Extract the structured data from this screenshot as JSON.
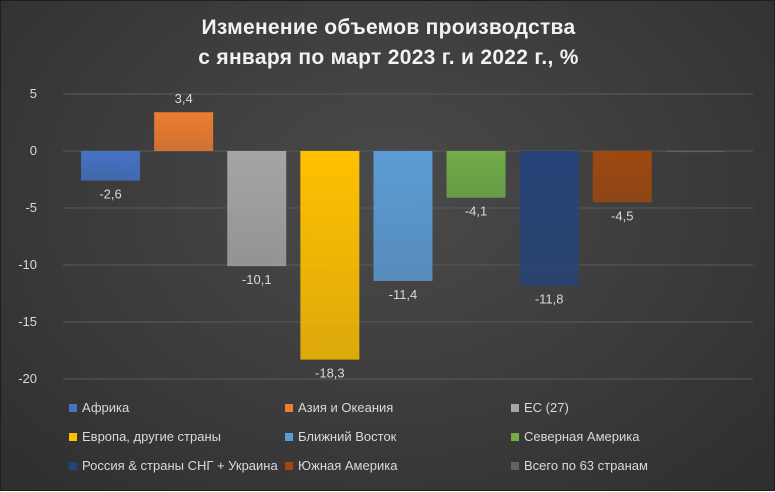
{
  "chart_data": {
    "type": "bar",
    "title_lines": [
      "Изменение объемов производства",
      "с января по март 2023 г. и 2022 г., %"
    ],
    "xlabel": "",
    "ylabel": "",
    "ylim": [
      -20,
      5
    ],
    "yticks": [
      "5",
      "0",
      "-5",
      "-10",
      "-15",
      "-20"
    ],
    "ytick_values": [
      5,
      0,
      -5,
      -10,
      -15,
      -20
    ],
    "grid": true,
    "legend_position": "bottom",
    "series": [
      {
        "name": "Африка",
        "value": -2.6,
        "label": "-2,6",
        "color": "#4472C4"
      },
      {
        "name": "Азия и Океания",
        "value": 3.4,
        "label": "3,4",
        "color": "#ED7D31"
      },
      {
        "name": "ЕС (27)",
        "value": -10.1,
        "label": "-10,1",
        "color": "#A5A5A5"
      },
      {
        "name": "Европа, другие страны",
        "value": -18.3,
        "label": "-18,3",
        "color": "#FFC000"
      },
      {
        "name": "Ближний Восток",
        "value": -11.4,
        "label": "-11,4",
        "color": "#5B9BD5"
      },
      {
        "name": "Северная Америка",
        "value": -4.1,
        "label": "-4,1",
        "color": "#70AD47"
      },
      {
        "name": "Россия & страны СНГ + Украина",
        "value": -11.8,
        "label": "-11,8",
        "color": "#264478"
      },
      {
        "name": "Южная Америка",
        "value": -4.5,
        "label": "-4,5",
        "color": "#9E480E"
      },
      {
        "name": "Всего по 63 странам",
        "value": -0.1,
        "label": "",
        "color": "#636363"
      }
    ]
  }
}
